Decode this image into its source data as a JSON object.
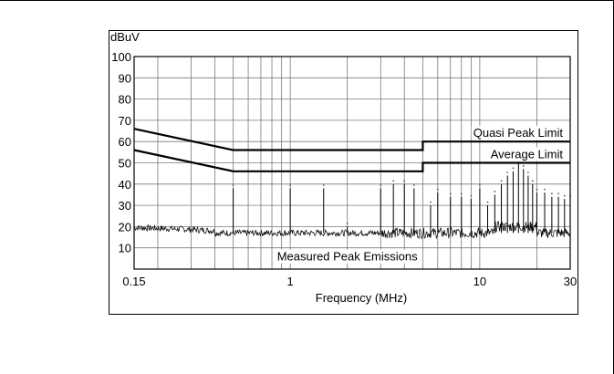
{
  "chart_data": {
    "type": "line",
    "ylabel": "dBuV",
    "xlabel": "Frequency (MHz)",
    "x_scale": "log",
    "xlim": [
      0.15,
      30
    ],
    "ylim": [
      0,
      100
    ],
    "grid": true,
    "x_ticks": [
      {
        "value": 0.15,
        "label": "0.15"
      },
      {
        "value": 1,
        "label": "1"
      },
      {
        "value": 10,
        "label": "10"
      },
      {
        "value": 30,
        "label": "30"
      }
    ],
    "y_ticks": [
      {
        "value": 10,
        "label": "10"
      },
      {
        "value": 20,
        "label": "20"
      },
      {
        "value": 30,
        "label": "30"
      },
      {
        "value": 40,
        "label": "40"
      },
      {
        "value": 50,
        "label": "50"
      },
      {
        "value": 60,
        "label": "60"
      },
      {
        "value": 70,
        "label": "70"
      },
      {
        "value": 80,
        "label": "80"
      },
      {
        "value": 90,
        "label": "90"
      },
      {
        "value": 100,
        "label": "100"
      }
    ],
    "series": [
      {
        "name": "Quasi Peak Limit",
        "color": "#000000",
        "points": [
          [
            0.15,
            66
          ],
          [
            0.5,
            56
          ],
          [
            5,
            56
          ],
          [
            5,
            60
          ],
          [
            30,
            60
          ]
        ]
      },
      {
        "name": "Average Limit",
        "color": "#000000",
        "points": [
          [
            0.15,
            56
          ],
          [
            0.5,
            46
          ],
          [
            5,
            46
          ],
          [
            5,
            50
          ],
          [
            30,
            50
          ]
        ]
      },
      {
        "name": "Measured Peak Emissions",
        "color": "#000000",
        "baseline_dbuv": 17,
        "spikes": [
          [
            0.5,
            38
          ],
          [
            1.0,
            38
          ],
          [
            1.5,
            38
          ],
          [
            2.0,
            20
          ],
          [
            3.0,
            38
          ],
          [
            3.5,
            40
          ],
          [
            4.0,
            40
          ],
          [
            4.5,
            38
          ],
          [
            5.5,
            30
          ],
          [
            6.0,
            36
          ],
          [
            7.0,
            34
          ],
          [
            8.0,
            34
          ],
          [
            9.0,
            33
          ],
          [
            10.0,
            38
          ],
          [
            11.0,
            30
          ],
          [
            12.0,
            35
          ],
          [
            13.0,
            40
          ],
          [
            14.0,
            44
          ],
          [
            15.0,
            46
          ],
          [
            16.0,
            50
          ],
          [
            17.0,
            47
          ],
          [
            18.0,
            44
          ],
          [
            19.0,
            40
          ],
          [
            20.0,
            36
          ],
          [
            22.0,
            36
          ],
          [
            24.0,
            34
          ],
          [
            26.0,
            34
          ],
          [
            28.0,
            33
          ],
          [
            30.0,
            33
          ]
        ]
      }
    ]
  }
}
